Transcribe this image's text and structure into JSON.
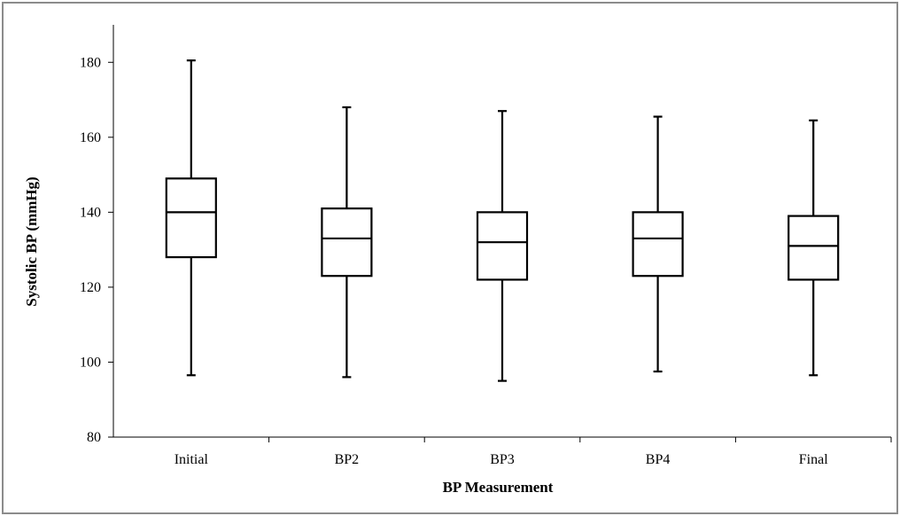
{
  "chart_data": {
    "type": "box",
    "title": "",
    "xlabel": "BP Measurement",
    "ylabel": "Systolic BP (mmHg)",
    "ylim": [
      80,
      190
    ],
    "yticks": [
      80,
      100,
      120,
      140,
      160,
      180
    ],
    "grid": false,
    "categories": [
      "Initial",
      "BP2",
      "BP3",
      "BP4",
      "Final"
    ],
    "boxes": [
      {
        "min": 96.5,
        "q1": 128,
        "median": 140,
        "q3": 149,
        "max": 180.5
      },
      {
        "min": 96,
        "q1": 123,
        "median": 133,
        "q3": 141,
        "max": 168
      },
      {
        "min": 95,
        "q1": 122,
        "median": 132,
        "q3": 140,
        "max": 167
      },
      {
        "min": 97.5,
        "q1": 123,
        "median": 133,
        "q3": 140,
        "max": 165.5
      },
      {
        "min": 96.5,
        "q1": 122,
        "median": 131,
        "q3": 139,
        "max": 164.5
      }
    ]
  }
}
